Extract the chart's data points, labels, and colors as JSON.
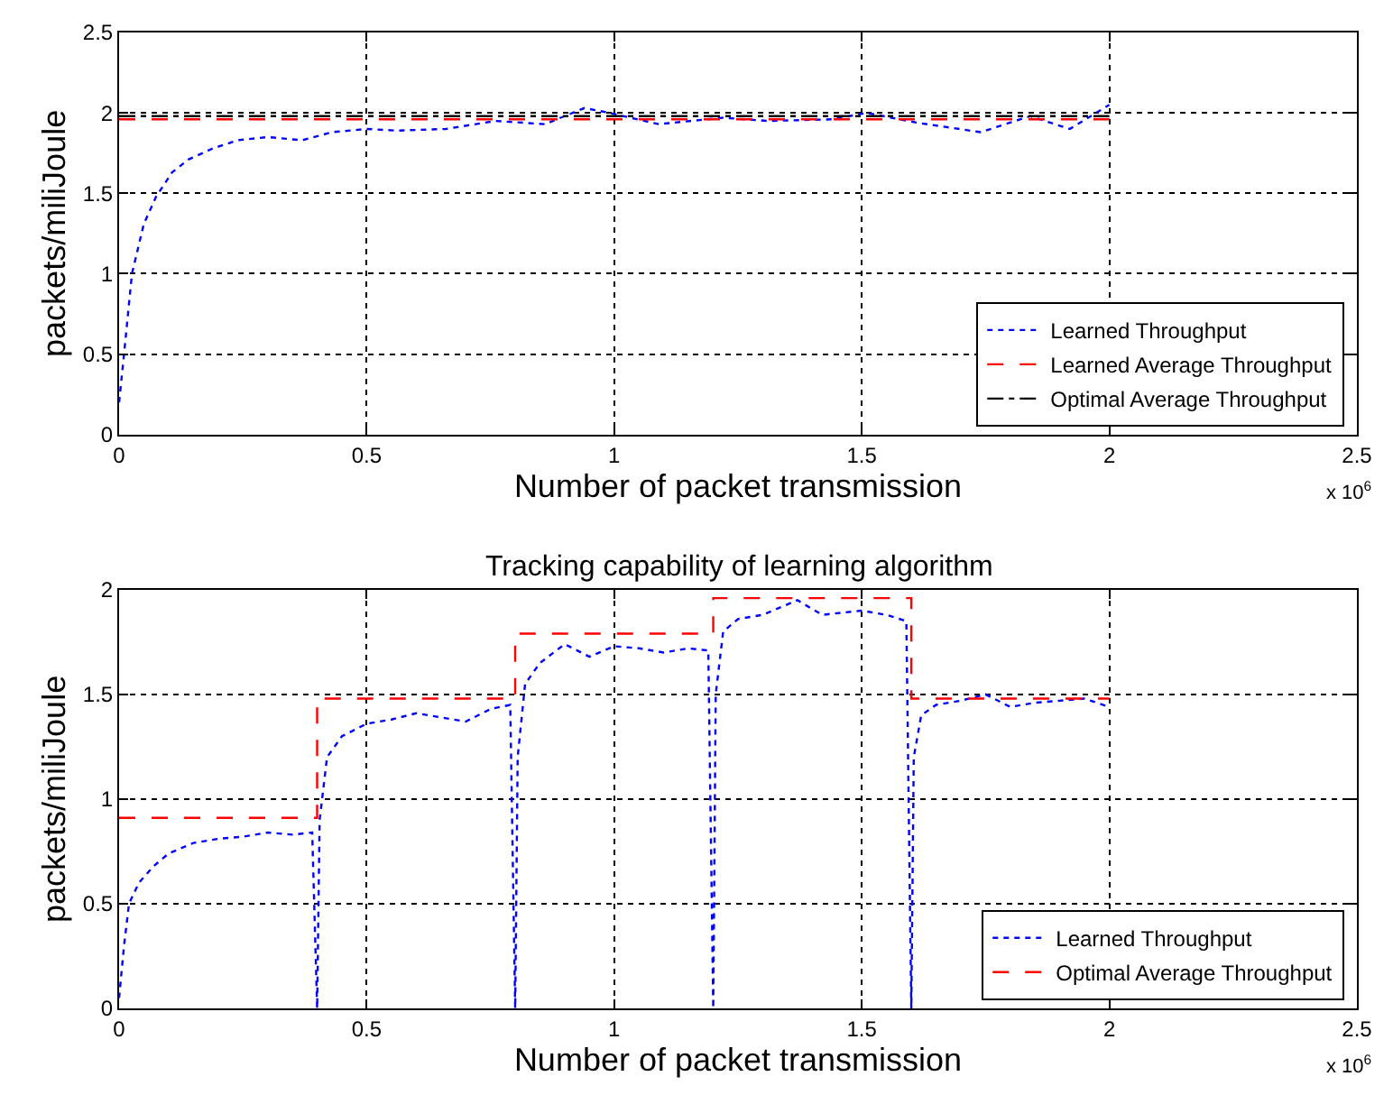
{
  "chart_data": [
    {
      "type": "line",
      "ylabel": "packets/miliJoule",
      "xlabel": "Number of packet transmission",
      "annotations": [
        "x 10$^{6}$"
      ],
      "xlim": [
        0,
        2.5
      ],
      "xticks": [
        0,
        0.5,
        1,
        1.5,
        2,
        2.5
      ],
      "ylim": [
        0,
        2.5
      ],
      "yticks": [
        0,
        0.5,
        1,
        1.5,
        2,
        2.5
      ],
      "grid": true,
      "legend": "bottom right",
      "series": [
        {
          "name": "Learned Throughput",
          "color": "#0000ff",
          "line_style": "dotted",
          "x": [
            0,
            0.01,
            0.026,
            0.05,
            0.075,
            0.107,
            0.14,
            0.19,
            0.24,
            0.3,
            0.37,
            0.43,
            0.5,
            0.56,
            0.66,
            0.76,
            0.86,
            0.94,
            0.99,
            1.09,
            1.22,
            1.31,
            1.44,
            1.51,
            1.61,
            1.74,
            1.84,
            1.92,
            2.0
          ],
          "values": [
            0.2,
            0.5,
            1.0,
            1.31,
            1.48,
            1.63,
            1.71,
            1.78,
            1.83,
            1.85,
            1.83,
            1.88,
            1.9,
            1.89,
            1.9,
            1.95,
            1.93,
            2.03,
            2.0,
            1.93,
            1.97,
            1.95,
            1.96,
            2.0,
            1.94,
            1.88,
            1.98,
            1.9,
            2.05
          ]
        },
        {
          "name": "Learned Average Throughput",
          "color": "#ff0000",
          "line_style": "dashed",
          "x": [
            0,
            2
          ],
          "values": [
            1.96,
            1.96
          ]
        },
        {
          "name": "Optimal Average Throughput",
          "color": "#000000",
          "line_style": "dashdot",
          "x": [
            0,
            2
          ],
          "values": [
            1.98,
            1.98
          ]
        }
      ]
    },
    {
      "type": "line",
      "title": "Tracking capability of learning algorithm",
      "ylabel": "packets/miliJoule",
      "xlabel": "Number of packet transmission",
      "annotations": [
        "x 10$^{6}$"
      ],
      "xlim": [
        0,
        2.5
      ],
      "xticks": [
        0,
        0.5,
        1,
        1.5,
        2,
        2.5
      ],
      "ylim": [
        0,
        2
      ],
      "yticks": [
        0,
        0.5,
        1,
        1.5,
        2
      ],
      "grid": true,
      "legend": "bottom right",
      "series": [
        {
          "name": "Learned Throughput",
          "color": "#0000ff",
          "line_style": "dotted",
          "x": [
            0,
            0.01,
            0.02,
            0.04,
            0.07,
            0.1,
            0.15,
            0.2,
            0.25,
            0.3,
            0.35,
            0.39,
            0.4,
            0.405,
            0.42,
            0.45,
            0.5,
            0.55,
            0.6,
            0.65,
            0.7,
            0.75,
            0.79,
            0.8,
            0.805,
            0.82,
            0.85,
            0.9,
            0.95,
            1.0,
            1.05,
            1.1,
            1.15,
            1.19,
            1.2,
            1.205,
            1.22,
            1.25,
            1.3,
            1.37,
            1.42,
            1.5,
            1.55,
            1.59,
            1.6,
            1.605,
            1.62,
            1.65,
            1.7,
            1.75,
            1.8,
            1.85,
            1.9,
            1.95,
            2.0
          ],
          "values": [
            0.05,
            0.3,
            0.5,
            0.6,
            0.68,
            0.74,
            0.79,
            0.81,
            0.82,
            0.84,
            0.83,
            0.84,
            0,
            0.9,
            1.2,
            1.3,
            1.36,
            1.38,
            1.41,
            1.39,
            1.37,
            1.43,
            1.45,
            0,
            1.2,
            1.55,
            1.65,
            1.74,
            1.68,
            1.73,
            1.72,
            1.7,
            1.72,
            1.71,
            0,
            1.5,
            1.8,
            1.86,
            1.88,
            1.95,
            1.88,
            1.9,
            1.88,
            1.85,
            0,
            1.2,
            1.4,
            1.45,
            1.47,
            1.5,
            1.44,
            1.46,
            1.47,
            1.48,
            1.44
          ]
        },
        {
          "name": "Optimal Average Throughput",
          "type": "step",
          "color": "#ff0000",
          "line_style": "dashed",
          "x": [
            0,
            0.4,
            0.8,
            1.2,
            1.6,
            2.0
          ],
          "values": [
            0.91,
            1.48,
            1.79,
            1.96,
            1.48,
            1.48
          ]
        }
      ]
    }
  ]
}
